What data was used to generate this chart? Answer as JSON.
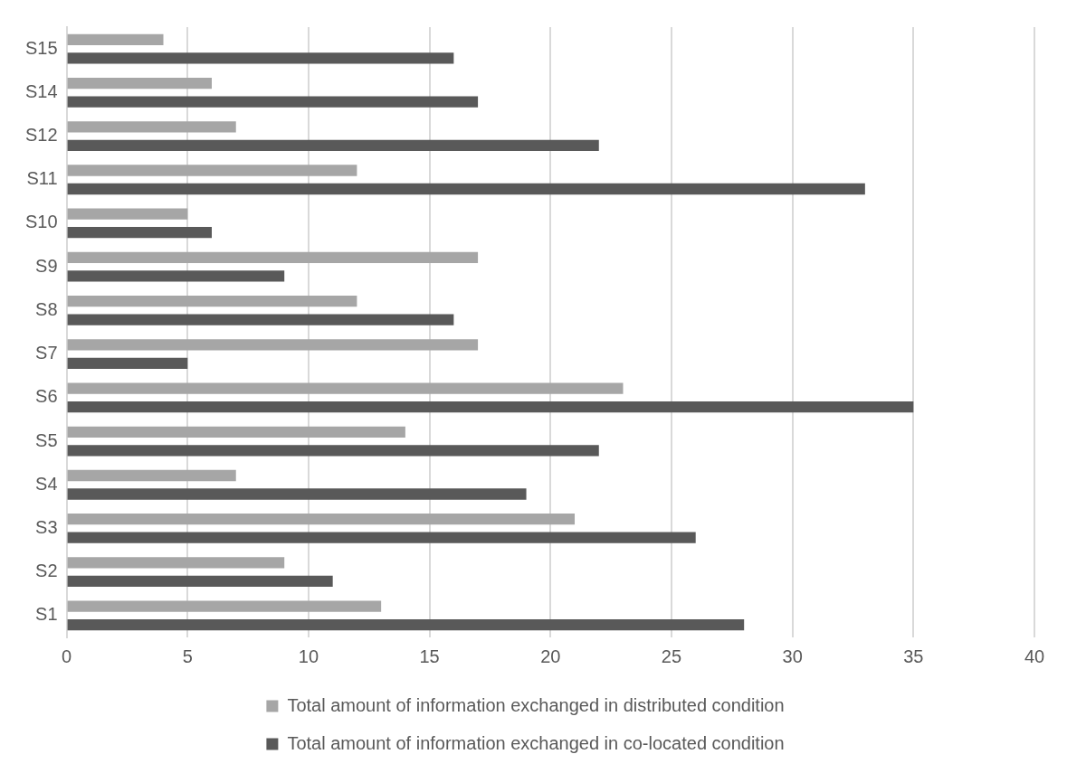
{
  "chart_data": {
    "type": "bar",
    "orientation": "horizontal",
    "categories": [
      "S15",
      "S14",
      "S12",
      "S11",
      "S10",
      "S9",
      "S8",
      "S7",
      "S6",
      "S5",
      "S4",
      "S3",
      "S2",
      "S1"
    ],
    "series": [
      {
        "name": "Total amount of information exchanged in distributed condition",
        "color": "#a6a6a6",
        "values": [
          4,
          6,
          7,
          12,
          5,
          17,
          12,
          17,
          23,
          14,
          7,
          21,
          9,
          13
        ]
      },
      {
        "name": "Total amount of information exchanged in co-located condition",
        "color": "#595959",
        "values": [
          16,
          17,
          22,
          33,
          6,
          9,
          16,
          5,
          35,
          22,
          19,
          26,
          11,
          28
        ]
      }
    ],
    "xlim": [
      0,
      40
    ],
    "xticks": [
      0,
      5,
      10,
      15,
      20,
      25,
      30,
      35,
      40
    ],
    "grid": "x",
    "legend": "bottom"
  }
}
